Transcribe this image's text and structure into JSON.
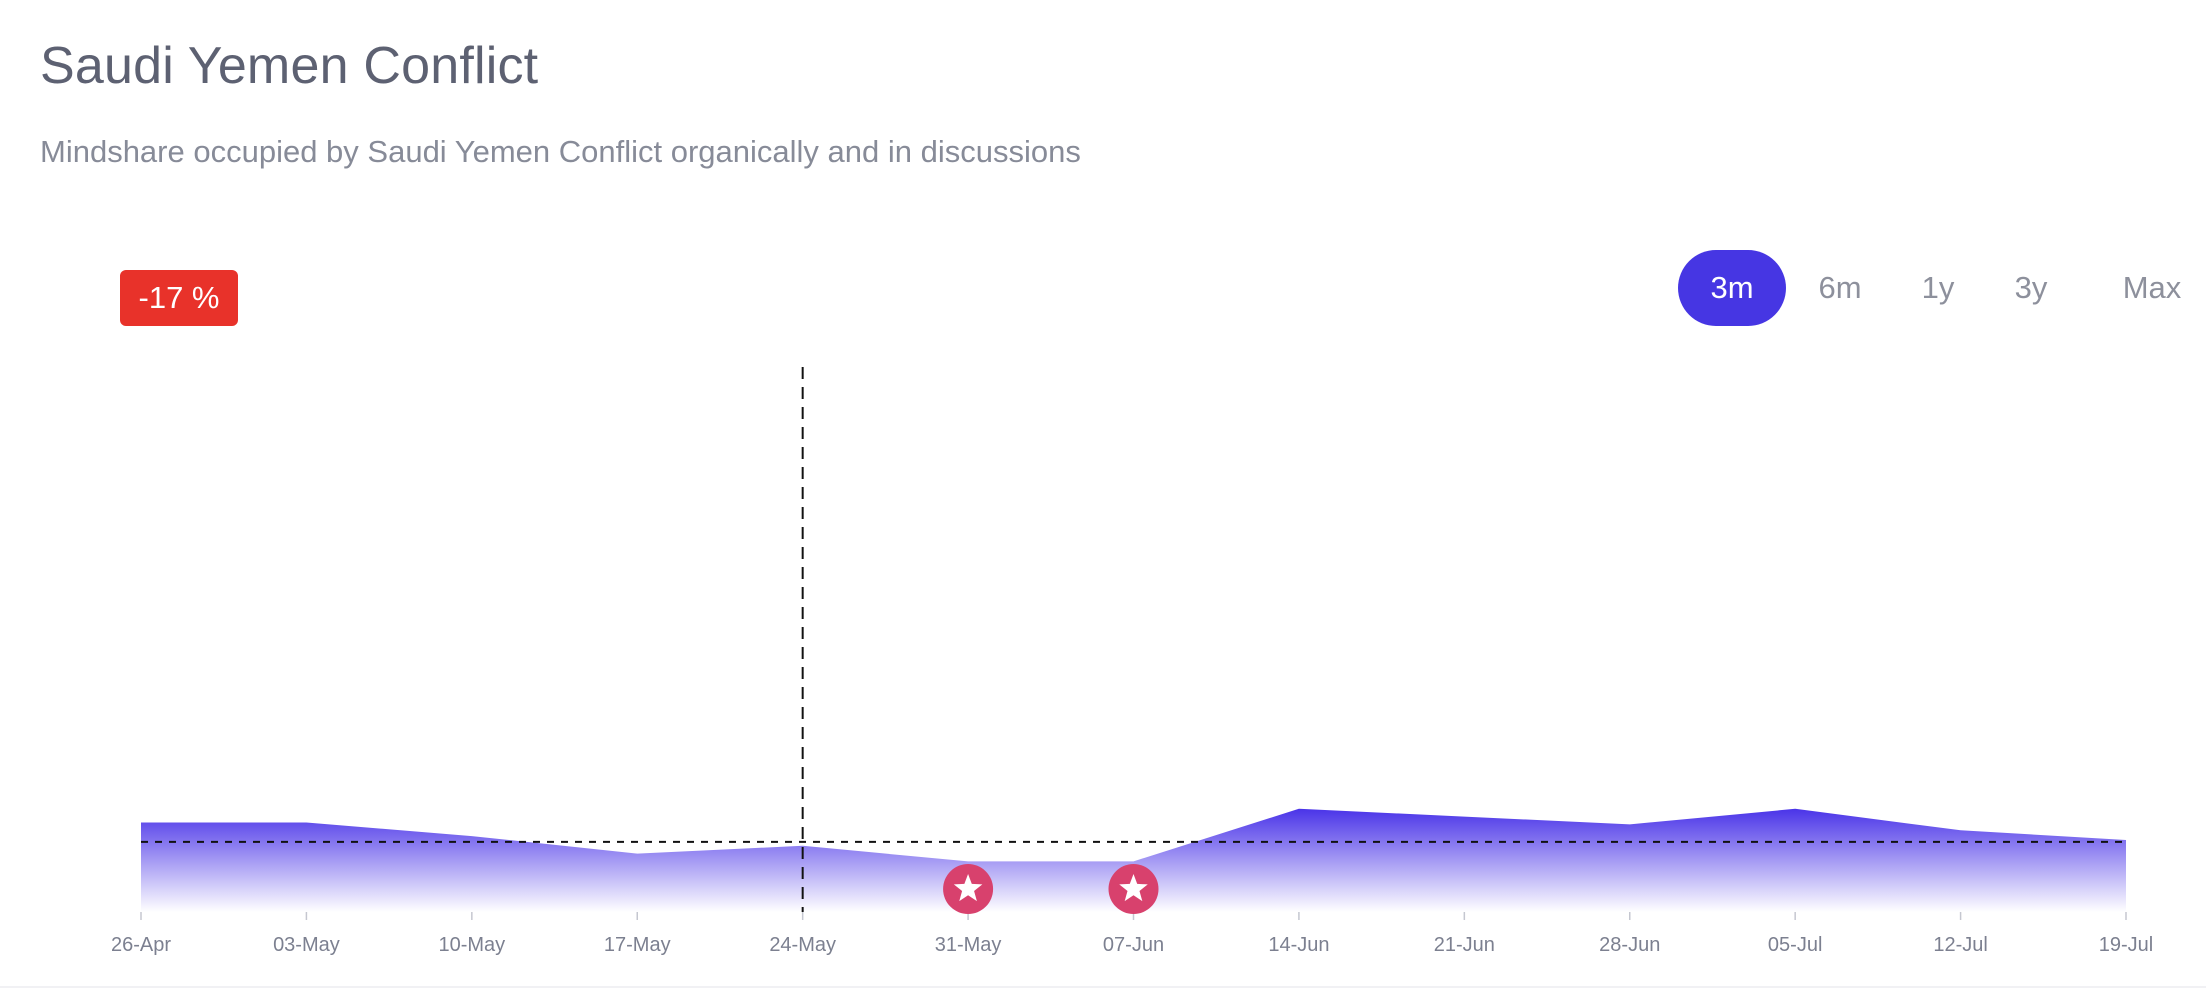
{
  "header": {
    "title": "Saudi Yemen Conflict",
    "subtitle": "Mindshare occupied by Saudi Yemen Conflict organically and in discussions"
  },
  "change_badge": {
    "label": "-17 %",
    "color": "#e8322a"
  },
  "range_tabs": [
    {
      "label": "3m",
      "active": true
    },
    {
      "label": "6m",
      "active": false
    },
    {
      "label": "1y",
      "active": false
    },
    {
      "label": "3y",
      "active": false
    },
    {
      "label": "Max",
      "active": false
    }
  ],
  "colors": {
    "accent": "#4636e3",
    "area_top": "#4a34e8",
    "area_bottom": "#ffffff",
    "event_marker": "#d8416d"
  },
  "chart_data": {
    "type": "area",
    "title": "",
    "xlabel": "",
    "ylabel": "",
    "x": [
      "26-Apr",
      "03-May",
      "10-May",
      "17-May",
      "24-May",
      "31-May",
      "07-Jun",
      "14-Jun",
      "21-Jun",
      "28-Jun",
      "05-Jul",
      "12-Jul",
      "19-Jul"
    ],
    "values": [
      23,
      23,
      19.5,
      15,
      17,
      13,
      13,
      26.5,
      24.5,
      22.5,
      26.5,
      21,
      18.5
    ],
    "ylim": [
      0,
      140
    ],
    "baseline_value": 18,
    "marker_x": "24-May",
    "events": [
      "31-May",
      "07-Jun"
    ],
    "event_icon": "star-icon",
    "grid": false,
    "legend": "none"
  }
}
